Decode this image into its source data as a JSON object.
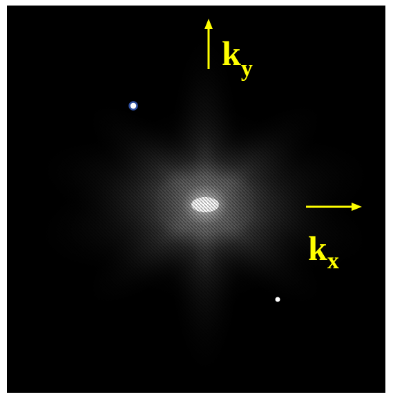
{
  "axes": [
    {
      "base": "k",
      "subscript": "y"
    },
    {
      "base": "k",
      "subscript": "x"
    }
  ]
}
